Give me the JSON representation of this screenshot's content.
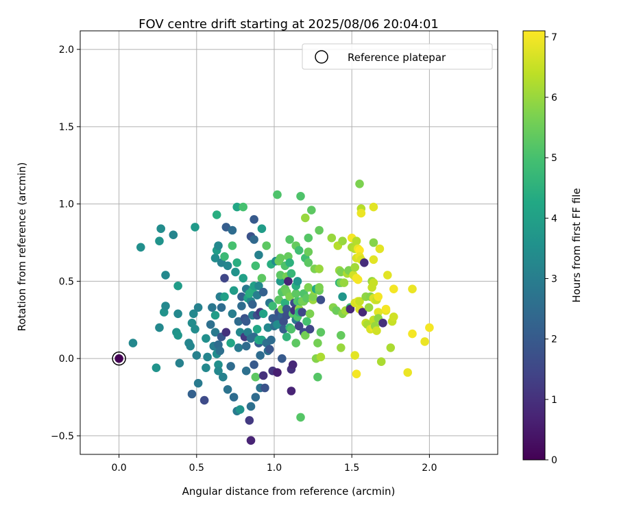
{
  "chart_data": {
    "type": "scatter",
    "title": "FOV centre drift starting at 2025/08/06 20:04:01",
    "xlabel": "Angular distance from reference (arcmin)",
    "ylabel": "Rotation from reference (arcmin)",
    "xlim": [
      -0.25,
      2.44
    ],
    "ylim": [
      -0.62,
      2.12
    ],
    "xticks": [
      0.0,
      0.5,
      1.0,
      1.5,
      2.0
    ],
    "xtick_labels": [
      "0.0",
      "0.5",
      "1.0",
      "1.5",
      "2.0"
    ],
    "yticks": [
      -0.5,
      0.0,
      0.5,
      1.0,
      1.5,
      2.0
    ],
    "ytick_labels": [
      "−0.5",
      "0.0",
      "0.5",
      "1.0",
      "1.5",
      "2.0"
    ],
    "grid": true,
    "colormap": "viridis",
    "colorbar": {
      "label": "Hours from first FF file",
      "range": [
        0,
        7.1
      ],
      "ticks": [
        0,
        1,
        2,
        3,
        4,
        5,
        6,
        7
      ],
      "tick_labels": [
        "0",
        "1",
        "2",
        "3",
        "4",
        "5",
        "6",
        "7"
      ]
    },
    "legend": {
      "placement": "upper right",
      "entries": [
        "Reference platepar"
      ]
    },
    "reference": {
      "x": 0.0,
      "y": 0.0,
      "hours": 0.0
    },
    "points": [
      [
        0.09,
        0.1,
        3.3
      ],
      [
        0.14,
        0.72,
        3.5
      ],
      [
        0.24,
        -0.06,
        3.6
      ],
      [
        0.26,
        0.2,
        3.3
      ],
      [
        0.26,
        0.76,
        3.6
      ],
      [
        0.27,
        0.84,
        3.4
      ],
      [
        0.3,
        0.54,
        3.3
      ],
      [
        0.29,
        0.3,
        3.6
      ],
      [
        0.3,
        0.34,
        3.3
      ],
      [
        0.35,
        0.8,
        3.2
      ],
      [
        0.37,
        0.17,
        3.6
      ],
      [
        0.38,
        0.15,
        3.7
      ],
      [
        0.38,
        0.29,
        3.3
      ],
      [
        0.38,
        0.47,
        3.9
      ],
      [
        0.39,
        -0.03,
        3.1
      ],
      [
        0.45,
        0.1,
        3.2
      ],
      [
        0.46,
        0.08,
        3.2
      ],
      [
        0.47,
        0.23,
        3.4
      ],
      [
        0.47,
        -0.23,
        2.2
      ],
      [
        0.48,
        0.29,
        3.3
      ],
      [
        0.49,
        0.85,
        3.8
      ],
      [
        0.49,
        0.19,
        3.4
      ],
      [
        0.51,
        -0.16,
        2.9
      ],
      [
        0.5,
        0.02,
        3.1
      ],
      [
        0.51,
        0.33,
        3.1
      ],
      [
        0.55,
        -0.27,
        1.6
      ],
      [
        0.56,
        0.13,
        3.5
      ],
      [
        0.56,
        -0.06,
        3.3
      ],
      [
        0.57,
        0.01,
        3.2
      ],
      [
        0.59,
        0.22,
        2.6
      ],
      [
        0.6,
        0.33,
        2.8
      ],
      [
        0.61,
        0.08,
        3.0
      ],
      [
        0.62,
        0.17,
        2.9
      ],
      [
        0.62,
        0.28,
        3.9
      ],
      [
        0.62,
        0.65,
        3.4
      ],
      [
        0.63,
        0.7,
        3.9
      ],
      [
        0.63,
        0.93,
        4.4
      ],
      [
        0.64,
        0.73,
        3.3
      ],
      [
        0.64,
        -0.04,
        3.5
      ],
      [
        0.63,
        0.03,
        3.4
      ],
      [
        0.64,
        0.09,
        2.5
      ],
      [
        0.65,
        0.05,
        2.6
      ],
      [
        0.64,
        -0.08,
        3.3
      ],
      [
        0.65,
        0.4,
        3.0
      ],
      [
        0.66,
        0.33,
        2.5
      ],
      [
        0.66,
        0.14,
        1.9
      ],
      [
        0.66,
        0.62,
        3.1
      ],
      [
        0.67,
        -0.12,
        3.1
      ],
      [
        0.68,
        0.4,
        4.0
      ],
      [
        0.68,
        0.66,
        4.8
      ],
      [
        0.68,
        0.52,
        1.5
      ],
      [
        0.69,
        0.85,
        2.1
      ],
      [
        0.69,
        0.17,
        1.0
      ],
      [
        0.7,
        -0.2,
        2.7
      ],
      [
        0.7,
        0.6,
        3.2
      ],
      [
        0.72,
        -0.05,
        2.5
      ],
      [
        0.72,
        0.1,
        4.2
      ],
      [
        0.73,
        0.83,
        2.5
      ],
      [
        0.73,
        0.73,
        5.0
      ],
      [
        0.73,
        0.29,
        3.0
      ],
      [
        0.74,
        -0.25,
        2.5
      ],
      [
        0.74,
        0.44,
        3.9
      ],
      [
        0.75,
        0.56,
        3.6
      ],
      [
        0.76,
        0.98,
        4.2
      ],
      [
        0.76,
        0.62,
        4.4
      ],
      [
        0.77,
        0.07,
        2.9
      ],
      [
        0.76,
        -0.34,
        2.9
      ],
      [
        0.77,
        0.24,
        2.5
      ],
      [
        0.78,
        -0.33,
        3.6
      ],
      [
        0.78,
        0.17,
        3.3
      ],
      [
        0.79,
        0.4,
        2.2
      ],
      [
        0.79,
        0.34,
        2.5
      ],
      [
        0.8,
        0.98,
        5.0
      ],
      [
        0.8,
        0.52,
        4.0
      ],
      [
        0.81,
        0.14,
        1.2
      ],
      [
        0.81,
        0.26,
        1.8
      ],
      [
        0.82,
        0.24,
        2.0
      ],
      [
        0.82,
        0.08,
        2.5
      ],
      [
        0.82,
        -0.08,
        2.6
      ],
      [
        0.82,
        0.45,
        2.9
      ],
      [
        0.83,
        0.39,
        4.1
      ],
      [
        0.83,
        0.17,
        3.1
      ],
      [
        0.84,
        -0.4,
        1.2
      ],
      [
        0.85,
        0.37,
        3.2
      ],
      [
        0.84,
        0.42,
        4.4
      ],
      [
        0.85,
        0.13,
        2.6
      ],
      [
        0.85,
        -0.31,
        2.6
      ],
      [
        0.85,
        0.79,
        1.8
      ],
      [
        0.85,
        -0.53,
        0.7
      ],
      [
        0.86,
        0.44,
        4.4
      ],
      [
        0.86,
        0.28,
        3.0
      ],
      [
        0.86,
        0.35,
        2.2
      ],
      [
        0.87,
        -0.04,
        2.0
      ],
      [
        0.87,
        0.14,
        2.5
      ],
      [
        0.87,
        0.77,
        2.4
      ],
      [
        0.87,
        0.9,
        2.0
      ],
      [
        0.87,
        0.47,
        4.0
      ],
      [
        0.88,
        0.6,
        4.9
      ],
      [
        0.88,
        -0.12,
        5.3
      ],
      [
        0.88,
        -0.25,
        2.5
      ],
      [
        0.89,
        0.19,
        4.2
      ],
      [
        0.89,
        0.28,
        1.7
      ],
      [
        0.89,
        0.41,
        3.0
      ],
      [
        0.9,
        0.47,
        3.3
      ],
      [
        0.9,
        0.1,
        2.1
      ],
      [
        0.9,
        0.67,
        3.1
      ],
      [
        0.9,
        0.12,
        4.3
      ],
      [
        0.91,
        0.3,
        1.2
      ],
      [
        0.91,
        -0.19,
        2.7
      ],
      [
        0.91,
        0.02,
        2.5
      ],
      [
        0.92,
        0.84,
        3.9
      ],
      [
        0.92,
        0.12,
        4.1
      ],
      [
        0.92,
        0.52,
        5.3
      ],
      [
        0.93,
        0.29,
        4.1
      ],
      [
        0.93,
        0.43,
        2.2
      ],
      [
        0.93,
        -0.11,
        1.0
      ],
      [
        0.94,
        -0.19,
        1.8
      ],
      [
        0.95,
        0.1,
        2.6
      ],
      [
        0.95,
        0.73,
        5.3
      ],
      [
        0.96,
        0.05,
        2.6
      ],
      [
        0.96,
        0.2,
        3.3
      ],
      [
        0.97,
        0.06,
        1.9
      ],
      [
        0.97,
        0.36,
        2.8
      ],
      [
        0.98,
        0.12,
        2.5
      ],
      [
        0.98,
        0.61,
        4.4
      ],
      [
        0.99,
        -0.08,
        1.1
      ],
      [
        0.99,
        0.26,
        2.2
      ],
      [
        0.99,
        0.34,
        4.8
      ],
      [
        1.0,
        0.21,
        2.6
      ],
      [
        1.01,
        0.63,
        3.4
      ],
      [
        1.01,
        0.26,
        2.0
      ],
      [
        1.02,
        -0.09,
        0.6
      ],
      [
        1.02,
        0.22,
        3.4
      ],
      [
        1.02,
        1.06,
        5.1
      ],
      [
        1.03,
        0.38,
        5.3
      ],
      [
        1.03,
        0.3,
        1.7
      ],
      [
        1.03,
        0.63,
        5.5
      ],
      [
        1.04,
        0.65,
        5.4
      ],
      [
        1.04,
        0.5,
        3.8
      ],
      [
        1.04,
        0.54,
        5.3
      ],
      [
        1.05,
        0.28,
        2.2
      ],
      [
        1.05,
        0.43,
        5.2
      ],
      [
        1.05,
        0.32,
        5.7
      ],
      [
        1.05,
        0.0,
        2.0
      ],
      [
        1.06,
        0.24,
        1.7
      ],
      [
        1.06,
        0.19,
        2.1
      ],
      [
        1.07,
        0.36,
        4.5
      ],
      [
        1.07,
        0.6,
        5.1
      ],
      [
        1.07,
        0.45,
        5.4
      ],
      [
        1.08,
        0.43,
        5.5
      ],
      [
        1.08,
        0.32,
        1.9
      ],
      [
        1.08,
        0.14,
        4.6
      ],
      [
        1.08,
        0.53,
        5.6
      ],
      [
        1.08,
        0.28,
        1.7
      ],
      [
        1.09,
        0.66,
        5.4
      ],
      [
        1.09,
        0.5,
        0.7
      ],
      [
        1.1,
        0.77,
        5.2
      ],
      [
        1.1,
        0.62,
        4.5
      ],
      [
        1.1,
        0.2,
        4.7
      ],
      [
        1.1,
        0.4,
        5.7
      ],
      [
        1.11,
        -0.21,
        0.7
      ],
      [
        1.11,
        0.55,
        4.7
      ],
      [
        1.11,
        0.19,
        5.1
      ],
      [
        1.11,
        -0.07,
        1.0
      ],
      [
        1.12,
        0.29,
        5.2
      ],
      [
        1.12,
        -0.04,
        0.8
      ],
      [
        1.13,
        0.36,
        1.6
      ],
      [
        1.13,
        0.31,
        1.0
      ],
      [
        1.14,
        0.73,
        5.4
      ],
      [
        1.14,
        0.42,
        5.3
      ],
      [
        1.14,
        0.47,
        4.4
      ],
      [
        1.14,
        0.25,
        2.8
      ],
      [
        1.14,
        0.1,
        5.3
      ],
      [
        1.15,
        0.37,
        5.1
      ],
      [
        1.15,
        0.27,
        5.1
      ],
      [
        1.15,
        0.5,
        3.7
      ],
      [
        1.16,
        0.7,
        4.9
      ],
      [
        1.16,
        0.32,
        5.9
      ],
      [
        1.16,
        0.3,
        4.6
      ],
      [
        1.16,
        0.21,
        1.4
      ],
      [
        1.17,
        -0.38,
        5.2
      ],
      [
        1.17,
        1.05,
        5.1
      ],
      [
        1.17,
        0.37,
        4.9
      ],
      [
        1.18,
        0.3,
        1.5
      ],
      [
        1.18,
        0.37,
        5.5
      ],
      [
        1.19,
        0.37,
        5.6
      ],
      [
        1.19,
        0.17,
        1.6
      ],
      [
        1.19,
        0.42,
        5.1
      ],
      [
        1.2,
        0.65,
        4.9
      ],
      [
        1.2,
        0.15,
        5.6
      ],
      [
        1.2,
        0.91,
        6.0
      ],
      [
        1.21,
        0.24,
        5.0
      ],
      [
        1.21,
        0.39,
        5.3
      ],
      [
        1.22,
        0.69,
        5.5
      ],
      [
        1.22,
        0.62,
        5.3
      ],
      [
        1.22,
        0.46,
        5.7
      ],
      [
        1.22,
        0.78,
        5.2
      ],
      [
        1.23,
        0.19,
        1.5
      ],
      [
        1.23,
        0.29,
        5.7
      ],
      [
        1.24,
        0.96,
        5.3
      ],
      [
        1.25,
        0.38,
        6.0
      ],
      [
        1.25,
        0.4,
        5.7
      ],
      [
        1.26,
        0.44,
        5.9
      ],
      [
        1.26,
        0.58,
        5.7
      ],
      [
        1.27,
        0.45,
        4.3
      ],
      [
        1.27,
        0.0,
        5.8
      ],
      [
        1.28,
        0.1,
        5.6
      ],
      [
        1.28,
        -0.12,
        5.2
      ],
      [
        1.29,
        0.83,
        5.4
      ],
      [
        1.29,
        0.44,
        5.5
      ],
      [
        1.29,
        0.58,
        6.0
      ],
      [
        1.29,
        0.46,
        5.7
      ],
      [
        1.3,
        0.01,
        6.2
      ],
      [
        1.3,
        0.38,
        1.7
      ],
      [
        1.3,
        0.17,
        5.3
      ],
      [
        1.37,
        0.78,
        6.0
      ],
      [
        1.38,
        0.33,
        5.8
      ],
      [
        1.4,
        0.31,
        5.5
      ],
      [
        1.41,
        0.73,
        6.3
      ],
      [
        1.42,
        0.57,
        6.0
      ],
      [
        1.42,
        0.49,
        4.6
      ],
      [
        1.43,
        0.07,
        6.0
      ],
      [
        1.43,
        0.15,
        5.4
      ],
      [
        1.43,
        0.49,
        5.6
      ],
      [
        1.43,
        0.56,
        5.7
      ],
      [
        1.44,
        0.76,
        6.0
      ],
      [
        1.44,
        0.29,
        5.8
      ],
      [
        1.44,
        0.4,
        3.7
      ],
      [
        1.45,
        0.49,
        6.0
      ],
      [
        1.46,
        0.31,
        6.1
      ],
      [
        1.47,
        0.55,
        6.2
      ],
      [
        1.48,
        0.57,
        5.7
      ],
      [
        1.49,
        0.33,
        4.8
      ],
      [
        1.49,
        0.32,
        0.8
      ],
      [
        1.5,
        0.78,
        7.0
      ],
      [
        1.5,
        0.72,
        6.2
      ],
      [
        1.51,
        0.54,
        6.6
      ],
      [
        1.52,
        0.71,
        6.3
      ],
      [
        1.52,
        0.59,
        6.1
      ],
      [
        1.52,
        0.36,
        6.7
      ],
      [
        1.52,
        0.02,
        6.8
      ],
      [
        1.53,
        0.76,
        6.3
      ],
      [
        1.53,
        0.52,
        7.0
      ],
      [
        1.53,
        0.65,
        6.7
      ],
      [
        1.53,
        -0.1,
        7.0
      ],
      [
        1.54,
        0.51,
        7.0
      ],
      [
        1.54,
        0.71,
        6.9
      ],
      [
        1.54,
        0.37,
        6.8
      ],
      [
        1.55,
        0.7,
        7.1
      ],
      [
        1.55,
        0.32,
        6.7
      ],
      [
        1.55,
        0.37,
        6.5
      ],
      [
        1.55,
        0.66,
        6.9
      ],
      [
        1.55,
        1.13,
        5.7
      ],
      [
        1.56,
        0.97,
        6.3
      ],
      [
        1.56,
        0.94,
        6.9
      ],
      [
        1.56,
        0.64,
        6.7
      ],
      [
        1.57,
        0.3,
        0.8
      ],
      [
        1.58,
        0.62,
        0.9
      ],
      [
        1.59,
        0.4,
        5.9
      ],
      [
        1.59,
        0.23,
        6.5
      ],
      [
        1.6,
        0.22,
        6.2
      ],
      [
        1.61,
        0.33,
        6.0
      ],
      [
        1.62,
        0.19,
        6.7
      ],
      [
        1.62,
        0.4,
        5.8
      ],
      [
        1.63,
        0.5,
        6.0
      ],
      [
        1.63,
        0.46,
        6.5
      ],
      [
        1.64,
        0.64,
        6.8
      ],
      [
        1.64,
        0.75,
        5.8
      ],
      [
        1.64,
        0.25,
        6.4
      ],
      [
        1.64,
        0.39,
        6.7
      ],
      [
        1.64,
        0.2,
        6.9
      ],
      [
        1.64,
        0.49,
        6.5
      ],
      [
        1.64,
        0.98,
        6.8
      ],
      [
        1.65,
        0.21,
        6.0
      ],
      [
        1.65,
        0.38,
        6.7
      ],
      [
        1.66,
        0.18,
        6.6
      ],
      [
        1.66,
        0.38,
        6.5
      ],
      [
        1.67,
        0.3,
        6.8
      ],
      [
        1.67,
        0.4,
        7.0
      ],
      [
        1.67,
        0.26,
        5.9
      ],
      [
        1.68,
        0.71,
        6.8
      ],
      [
        1.69,
        -0.02,
        6.2
      ],
      [
        1.7,
        0.23,
        1.0
      ],
      [
        1.72,
        0.31,
        6.8
      ],
      [
        1.72,
        0.32,
        7.0
      ],
      [
        1.73,
        0.54,
        6.8
      ],
      [
        1.75,
        0.07,
        6.2
      ],
      [
        1.76,
        0.24,
        6.5
      ],
      [
        1.77,
        0.27,
        6.6
      ],
      [
        1.77,
        0.45,
        7.0
      ],
      [
        1.86,
        -0.09,
        6.9
      ],
      [
        1.89,
        0.16,
        7.0
      ],
      [
        1.89,
        0.45,
        6.9
      ],
      [
        1.97,
        0.11,
        6.9
      ],
      [
        2.0,
        0.2,
        7.0
      ]
    ]
  }
}
